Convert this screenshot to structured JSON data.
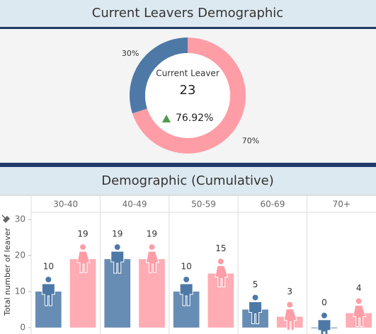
{
  "chart_data": [
    {
      "type": "pie",
      "title": "Current Leavers Demographic",
      "values": [
        30,
        70
      ],
      "value_labels": [
        "30%",
        "70%"
      ],
      "colors": [
        "#4e79a7",
        "#ff9da7"
      ],
      "center_label": "Current Leaver",
      "center_value": 23,
      "center_change": "76.92%"
    },
    {
      "type": "bar",
      "title": "Demographic (Cumulative)",
      "y_label": "Total number of leaver",
      "categories": [
        "30-40",
        "40-49",
        "50-59",
        "60-69",
        "70+"
      ],
      "series": [
        {
          "color": "#4e79a7",
          "values": [
            10,
            19,
            10,
            5,
            0
          ]
        },
        {
          "color": "#ff9da7",
          "values": [
            19,
            19,
            15,
            3,
            4
          ]
        }
      ],
      "ylim": [
        -1,
        32
      ],
      "yticks": [
        0,
        10,
        20,
        30
      ],
      "grid": false
    }
  ]
}
